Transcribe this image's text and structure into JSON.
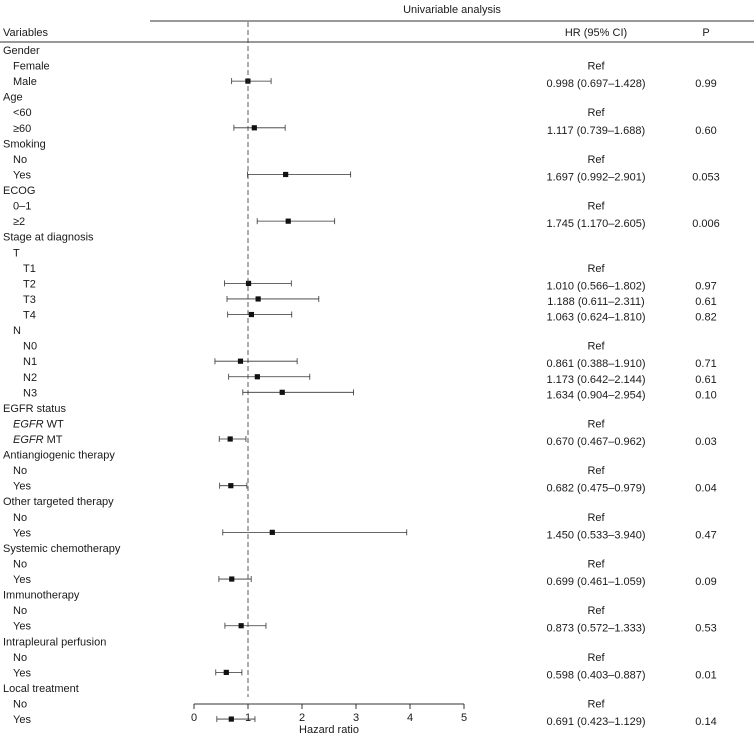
{
  "chart_data": {
    "type": "forest",
    "title": "Univariable analysis",
    "xlabel": "Hazard ratio",
    "xlim": [
      0,
      5
    ],
    "xticks": [
      "0",
      "1",
      "2",
      "3",
      "4",
      "5"
    ],
    "reference_line": 1,
    "headers": {
      "variables": "Variables",
      "hr": "HR (95% CI)",
      "p": "P"
    },
    "rows": [
      {
        "label": "Gender",
        "level": 0
      },
      {
        "label": "Female",
        "level": 1,
        "hr_text": "Ref"
      },
      {
        "label": "Male",
        "level": 1,
        "hr": 0.998,
        "lo": 0.697,
        "hi": 1.428,
        "hr_text": "0.998 (0.697–1.428)",
        "p": "0.99"
      },
      {
        "label": "Age",
        "level": 0
      },
      {
        "label": "<60",
        "level": 1,
        "hr_text": "Ref"
      },
      {
        "label": "≥60",
        "level": 1,
        "hr": 1.117,
        "lo": 0.739,
        "hi": 1.688,
        "hr_text": "1.117 (0.739–1.688)",
        "p": "0.60"
      },
      {
        "label": "Smoking",
        "level": 0
      },
      {
        "label": "No",
        "level": 1,
        "hr_text": "Ref"
      },
      {
        "label": "Yes",
        "level": 1,
        "hr": 1.697,
        "lo": 0.992,
        "hi": 2.901,
        "hr_text": "1.697 (0.992–2.901)",
        "p": "0.053"
      },
      {
        "label": "ECOG",
        "level": 0
      },
      {
        "label": "0–1",
        "level": 1,
        "hr_text": "Ref"
      },
      {
        "label": "≥2",
        "level": 1,
        "hr": 1.745,
        "lo": 1.17,
        "hi": 2.605,
        "hr_text": "1.745 (1.170–2.605)",
        "p": "0.006"
      },
      {
        "label": "Stage at diagnosis",
        "level": 0
      },
      {
        "label": "T",
        "level": 1
      },
      {
        "label": "T1",
        "level": 2,
        "hr_text": "Ref"
      },
      {
        "label": "T2",
        "level": 2,
        "hr": 1.01,
        "lo": 0.566,
        "hi": 1.802,
        "hr_text": "1.010 (0.566–1.802)",
        "p": "0.97"
      },
      {
        "label": "T3",
        "level": 2,
        "hr": 1.188,
        "lo": 0.611,
        "hi": 2.311,
        "hr_text": "1.188 (0.611–2.311)",
        "p": "0.61"
      },
      {
        "label": "T4",
        "level": 2,
        "hr": 1.063,
        "lo": 0.624,
        "hi": 1.81,
        "hr_text": "1.063 (0.624–1.810)",
        "p": "0.82"
      },
      {
        "label": "N",
        "level": 1
      },
      {
        "label": "N0",
        "level": 2,
        "hr_text": "Ref"
      },
      {
        "label": "N1",
        "level": 2,
        "hr": 0.861,
        "lo": 0.388,
        "hi": 1.91,
        "hr_text": "0.861 (0.388–1.910)",
        "p": "0.71"
      },
      {
        "label": "N2",
        "level": 2,
        "hr": 1.173,
        "lo": 0.642,
        "hi": 2.144,
        "hr_text": "1.173 (0.642–2.144)",
        "p": "0.61"
      },
      {
        "label": "N3",
        "level": 2,
        "hr": 1.634,
        "lo": 0.904,
        "hi": 2.954,
        "hr_text": "1.634 (0.904–2.954)",
        "p": "0.10"
      },
      {
        "label": "EGFR status",
        "level": 0
      },
      {
        "label": "EGFR WT",
        "level": 1,
        "italic": "EGFR",
        "hr_text": "Ref"
      },
      {
        "label": "EGFR MT",
        "level": 1,
        "italic": "EGFR",
        "hr": 0.67,
        "lo": 0.467,
        "hi": 0.962,
        "hr_text": "0.670 (0.467–0.962)",
        "p": "0.03"
      },
      {
        "label": "Antiangiogenic therapy",
        "level": 0
      },
      {
        "label": "No",
        "level": 1,
        "hr_text": "Ref"
      },
      {
        "label": "Yes",
        "level": 1,
        "hr": 0.682,
        "lo": 0.475,
        "hi": 0.979,
        "hr_text": "0.682 (0.475–0.979)",
        "p": "0.04"
      },
      {
        "label": "Other targeted therapy",
        "level": 0
      },
      {
        "label": "No",
        "level": 1,
        "hr_text": "Ref"
      },
      {
        "label": "Yes",
        "level": 1,
        "hr": 1.45,
        "lo": 0.533,
        "hi": 3.94,
        "hr_text": "1.450 (0.533–3.940)",
        "p": "0.47"
      },
      {
        "label": "Systemic chemotherapy",
        "level": 0
      },
      {
        "label": "No",
        "level": 1,
        "hr_text": "Ref"
      },
      {
        "label": "Yes",
        "level": 1,
        "hr": 0.699,
        "lo": 0.461,
        "hi": 1.059,
        "hr_text": "0.699 (0.461–1.059)",
        "p": "0.09"
      },
      {
        "label": "Immunotherapy",
        "level": 0
      },
      {
        "label": "No",
        "level": 1,
        "hr_text": "Ref"
      },
      {
        "label": "Yes",
        "level": 1,
        "hr": 0.873,
        "lo": 0.572,
        "hi": 1.333,
        "hr_text": "0.873 (0.572–1.333)",
        "p": "0.53"
      },
      {
        "label": "Intrapleural perfusion",
        "level": 0
      },
      {
        "label": "No",
        "level": 1,
        "hr_text": "Ref"
      },
      {
        "label": "Yes",
        "level": 1,
        "hr": 0.598,
        "lo": 0.403,
        "hi": 0.887,
        "hr_text": "0.598 (0.403–0.887)",
        "p": "0.01"
      },
      {
        "label": "Local treatment",
        "level": 0
      },
      {
        "label": "No",
        "level": 1,
        "hr_text": "Ref"
      },
      {
        "label": "Yes",
        "level": 1,
        "hr": 0.691,
        "lo": 0.423,
        "hi": 1.129,
        "hr_text": "0.691 (0.423–1.129)",
        "p": "0.14"
      }
    ]
  }
}
